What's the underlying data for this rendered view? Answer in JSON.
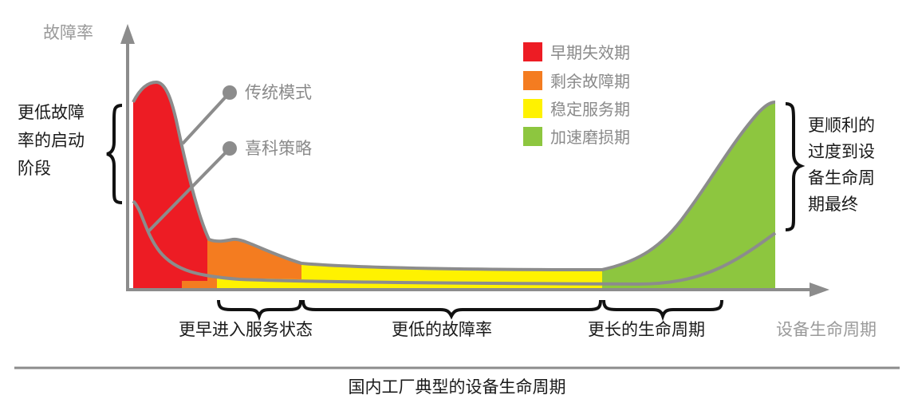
{
  "axes": {
    "y_label": "故障率",
    "x_label": "设备生命周期"
  },
  "legend": [
    {
      "label": "早期失效期",
      "color": "#ed1c24"
    },
    {
      "label": "剩余故障期",
      "color": "#f47c20"
    },
    {
      "label": "稳定服务期",
      "color": "#fff200"
    },
    {
      "label": "加速磨损期",
      "color": "#8dc63f"
    }
  ],
  "callouts": {
    "traditional": "传统模式",
    "hicorp": "喜科策略"
  },
  "left_note": [
    "更低故障",
    "率的启动",
    "阶段"
  ],
  "right_note": [
    "更顺利的",
    "过度到设",
    "备生命周",
    "期最终"
  ],
  "bottom_labels": [
    "更早进入服务状态",
    "更低的故障率",
    "更长的生命周期"
  ],
  "caption": "国内工厂典型的设备生命周期",
  "colors": {
    "axis": "#8c8c8c",
    "curve": "#8c8c8c",
    "brace": "#111111",
    "rule": "#8c8c8c"
  }
}
